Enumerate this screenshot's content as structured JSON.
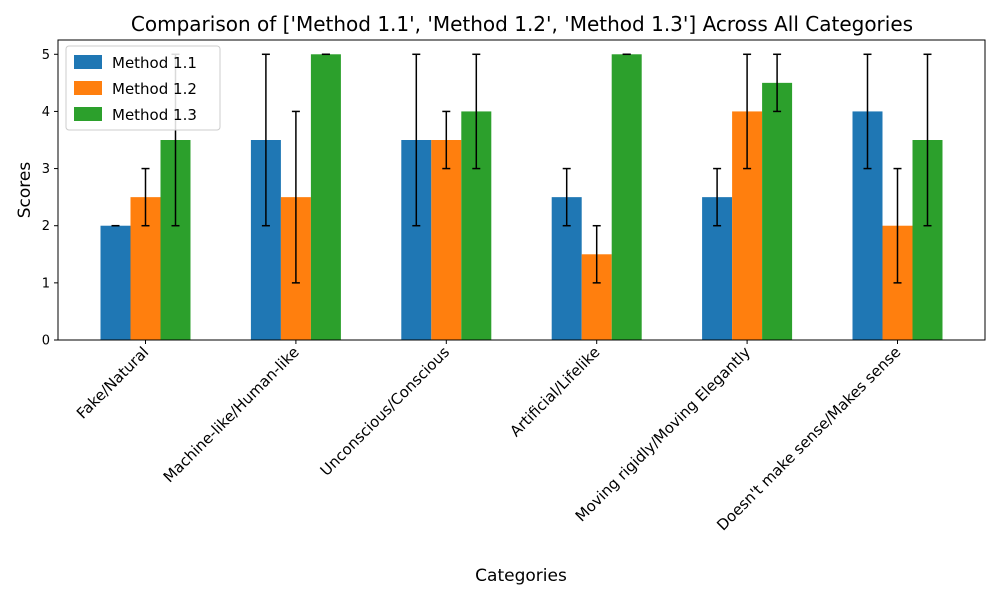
{
  "chart_data": {
    "type": "bar",
    "title": "Comparison of ['Method 1.1', 'Method 1.2', 'Method 1.3'] Across All Categories",
    "xlabel": "Categories",
    "ylabel": "Scores",
    "ylim": [
      0,
      5.25
    ],
    "yticks": [
      "0",
      "1",
      "2",
      "3",
      "4",
      "5"
    ],
    "grid": false,
    "legend_position": "top-left",
    "categories": [
      "Fake/Natural",
      "Machine-like/Human-like",
      "Unconscious/Conscious",
      "Artificial/Lifelike",
      "Moving rigidly/Moving Elegantly",
      "Doesn't make sense/Makes sense"
    ],
    "series": [
      {
        "name": "Method 1.1",
        "color": "#1f77b4",
        "values": [
          2,
          3.5,
          3.5,
          2.5,
          2.5,
          4
        ],
        "error_low": [
          2,
          2,
          2,
          2,
          2,
          3
        ],
        "error_high": [
          2,
          5,
          5,
          3,
          3,
          5
        ]
      },
      {
        "name": "Method 1.2",
        "color": "#ff7f0e",
        "values": [
          2.5,
          2.5,
          3.5,
          1.5,
          4,
          2
        ],
        "error_low": [
          2,
          1,
          3,
          1,
          3,
          1
        ],
        "error_high": [
          3,
          4,
          4,
          2,
          5,
          3
        ]
      },
      {
        "name": "Method 1.3",
        "color": "#2ca02c",
        "values": [
          3.5,
          5,
          4,
          5,
          4.5,
          3.5
        ],
        "error_low": [
          2,
          5,
          3,
          5,
          4,
          2
        ],
        "error_high": [
          5,
          5,
          5,
          5,
          5,
          5
        ]
      }
    ]
  }
}
